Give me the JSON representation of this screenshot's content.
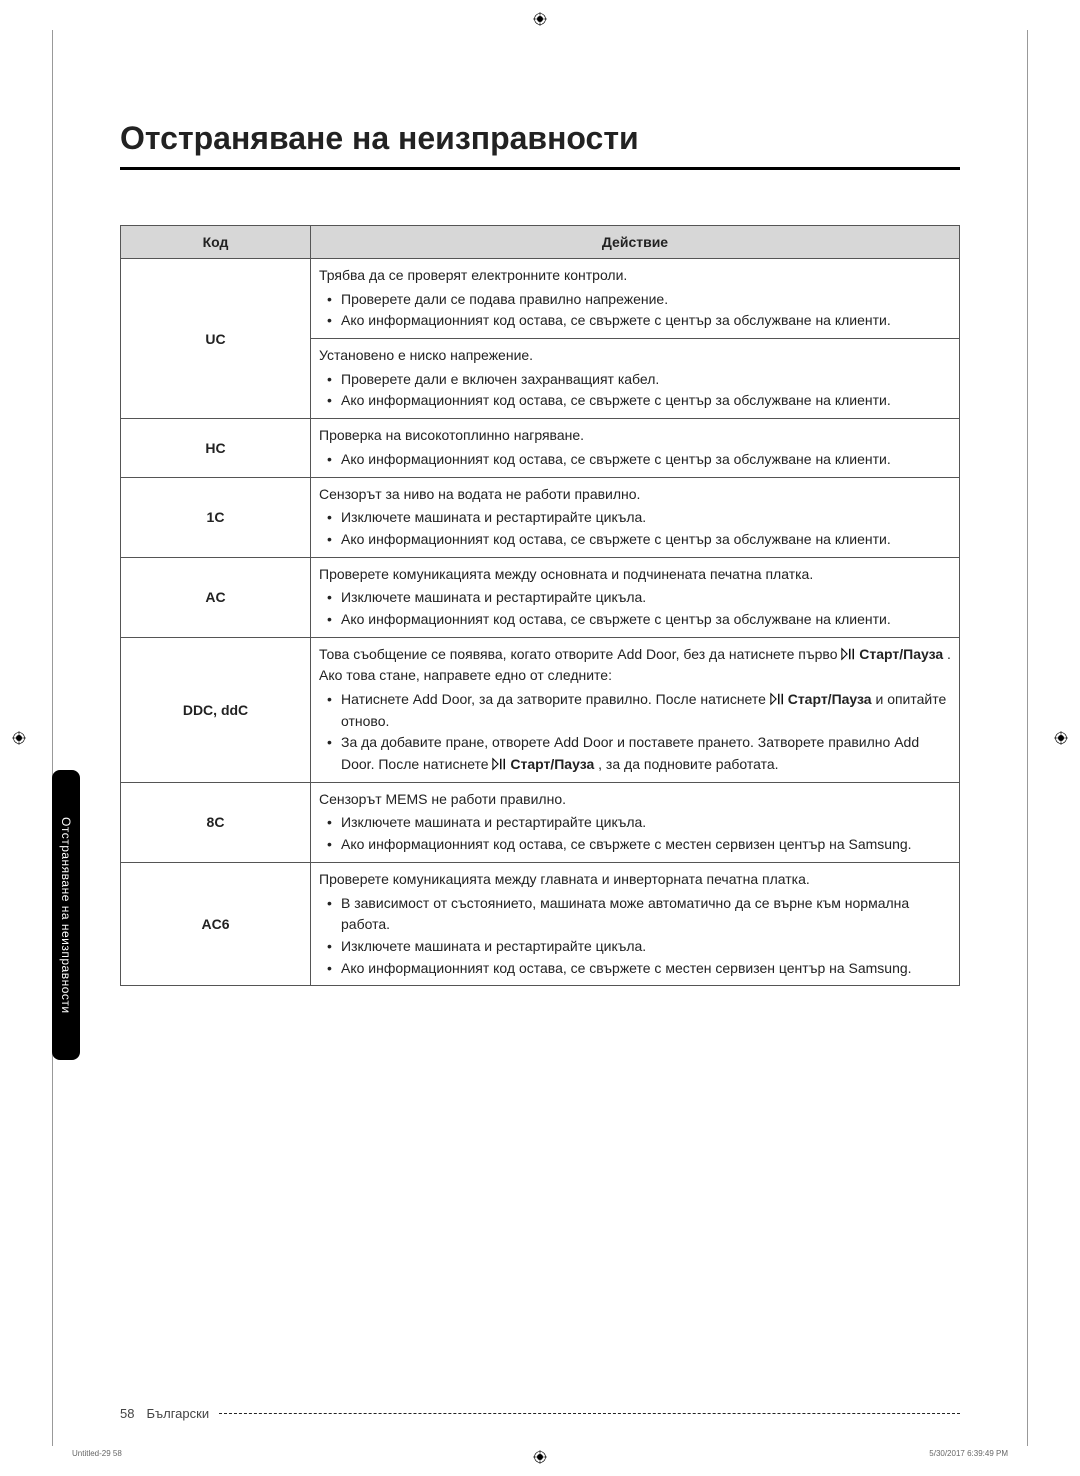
{
  "page_title": "Отстраняване на неизправности",
  "side_tab_label": "Отстраняване на неизправности",
  "table": {
    "header_code": "Код",
    "header_action": "Действие",
    "rows": [
      {
        "code": "UC",
        "cells": [
          {
            "intro": "Трябва да се проверят електронните контроли.",
            "items": [
              "Проверете дали се подава правилно напрежение.",
              "Ако информационният код остава, се свържете с център за обслужване на клиенти."
            ]
          },
          {
            "intro": "Установено е ниско напрежение.",
            "items": [
              "Проверете дали е включен захранващият кабел.",
              "Ако информационният код остава, се свържете с център за обслужване на клиенти."
            ]
          }
        ]
      },
      {
        "code": "HC",
        "cells": [
          {
            "intro": "Проверка на високотоплинно нагряване.",
            "items": [
              "Ако информационният код остава, се свържете с център за обслужване на клиенти."
            ]
          }
        ]
      },
      {
        "code": "1C",
        "cells": [
          {
            "intro": "Сензорът за ниво на водата не работи правилно.",
            "items": [
              "Изключете машината и рестартирайте цикъла.",
              "Ако информационният код остава, се свържете с център за обслужване на клиенти."
            ]
          }
        ]
      },
      {
        "code": "AC",
        "cells": [
          {
            "intro": "Проверете комуникацията между основната и подчинената печатна платка.",
            "items": [
              "Изключете машината и рестартирайте цикъла.",
              "Ако информационният код остава, се свържете с център за обслужване на клиенти."
            ]
          }
        ]
      },
      {
        "code": "DDC, ddC",
        "cells": [
          {
            "intro_html": "Това съобщение се появява, когато отворите Add Door, без да натиснете първо {ICON} <b>Старт/Пауза</b> . Ако това стане, направете едно от следните:",
            "items_html": [
              "Натиснете Add Door, за да затворите правилно. После натиснете {ICON} <b>Старт/Пауза</b> и опитайте отново.",
              "За да добавите пране, отворете Add Door и поставете прането. Затворете правилно Add Door. После натиснете {ICON} <b>Старт/Пауза</b> , за да подновите работата."
            ]
          }
        ]
      },
      {
        "code": "8C",
        "cells": [
          {
            "intro": "Сензорът MEMS не работи правилно.",
            "items": [
              "Изключете машината и рестартирайте цикъла.",
              "Ако информационният код остава, се свържете с местен сервизен център на Samsung."
            ]
          }
        ]
      },
      {
        "code": "AC6",
        "cells": [
          {
            "intro": "Проверете комуникацията между главната и инверторната печатна платка.",
            "items": [
              "В зависимост от състоянието, машината може автоматично да се върне към нормална работа.",
              "Изключете машината и рестартирайте цикъла.",
              "Ако информационният код остава, се свържете с местен сервизен център на Samsung."
            ]
          }
        ]
      }
    ]
  },
  "footer": {
    "page_number": "58",
    "language": "Български",
    "job_name": "Untitled-29   58",
    "timestamp": "5/30/2017   6:39:49 PM"
  }
}
